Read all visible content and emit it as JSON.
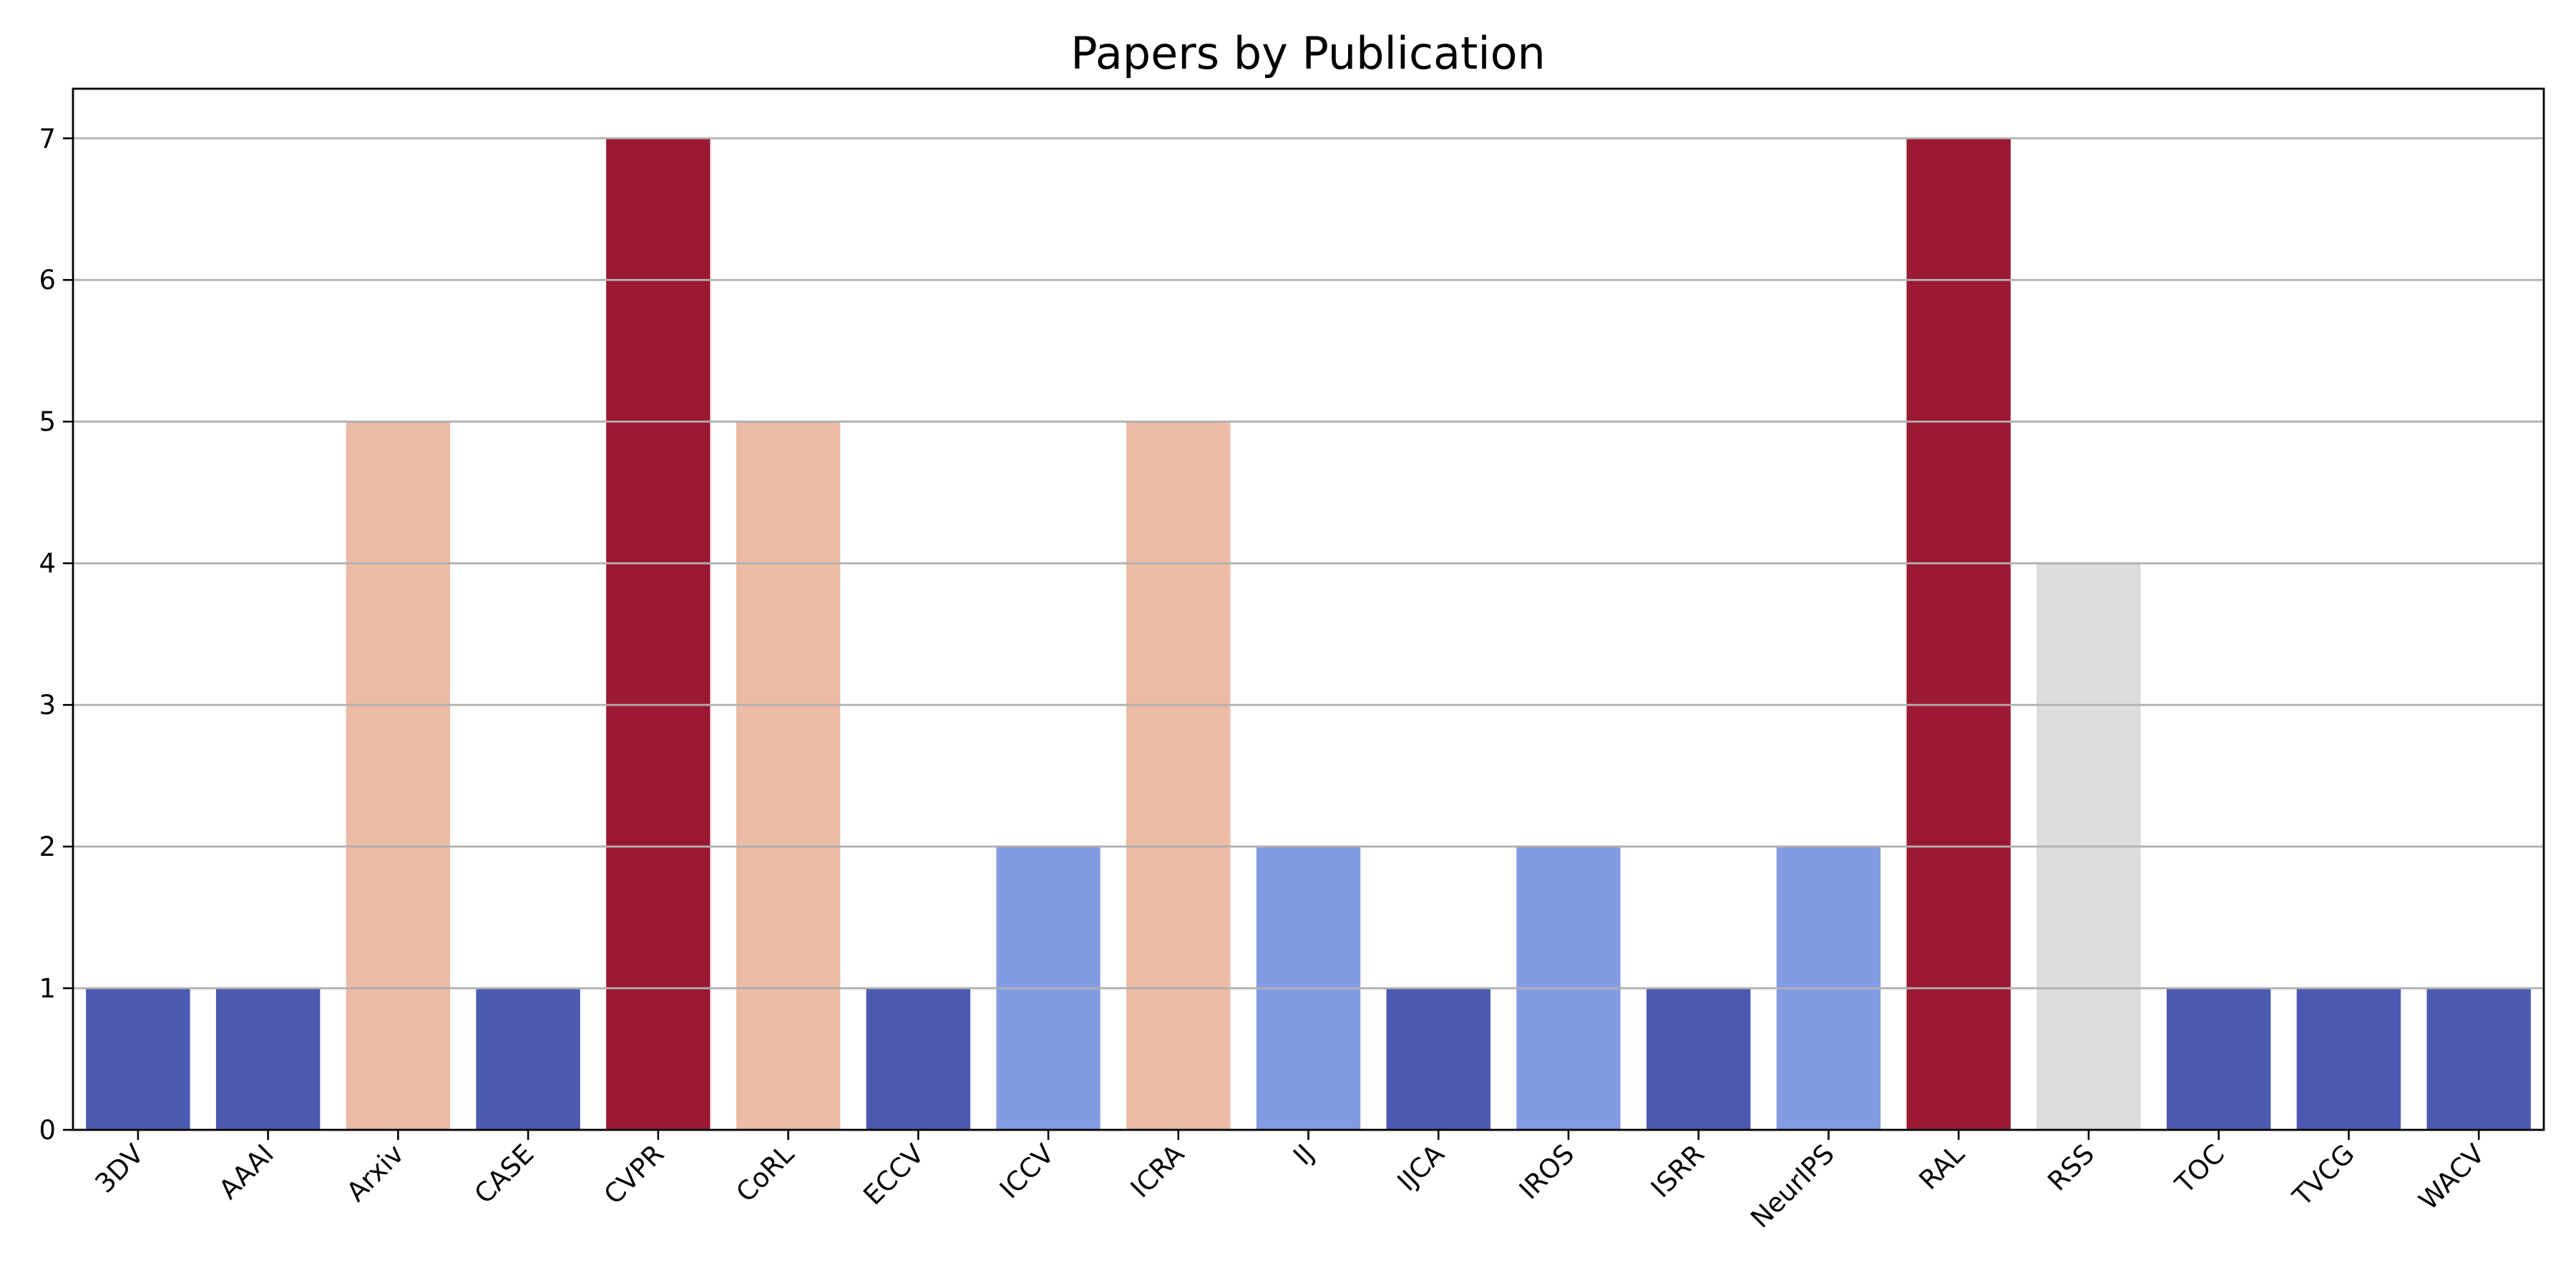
{
  "chart_data": {
    "type": "bar",
    "title": "Papers by Publication",
    "xlabel": "",
    "ylabel": "",
    "categories": [
      "3DV",
      "AAAI",
      "Arxiv",
      "CASE",
      "CVPR",
      "CoRL",
      "ECCV",
      "ICCV",
      "ICRA",
      "IJ",
      "IJCA",
      "IROS",
      "ISRR",
      "NeurIPS",
      "RAL",
      "RSS",
      "TOC",
      "TVCG",
      "WACV"
    ],
    "values": [
      1,
      1,
      5,
      1,
      7,
      5,
      1,
      2,
      5,
      2,
      1,
      2,
      1,
      2,
      7,
      4,
      1,
      1,
      1
    ],
    "ylim": [
      0,
      7.35
    ],
    "yticks": [
      0,
      1,
      2,
      3,
      4,
      5,
      6,
      7
    ],
    "grid": "horizontal",
    "colormap": "coolwarm",
    "value_colors": {
      "1": "#4b59b0",
      "2": "#839be3",
      "4": "#dcdcdc",
      "5": "#ecbaa5",
      "7": "#9c1933"
    }
  }
}
